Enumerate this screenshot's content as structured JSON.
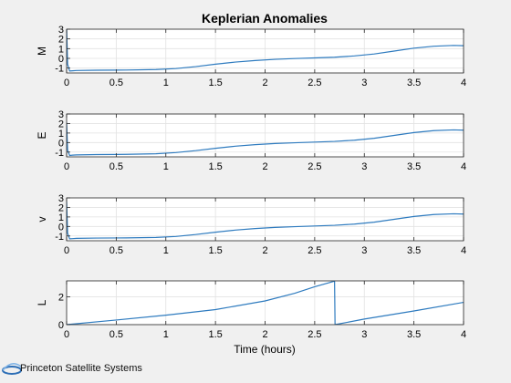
{
  "figure": {
    "title": "Keplerian Anomalies",
    "xlabel": "Time (hours)"
  },
  "logo": {
    "text": "Princeton Satellite Systems"
  },
  "colors": {
    "background": "#f0f0f0",
    "axes_bg": "#ffffff",
    "line": "#2e7bbf",
    "grid": "#e2e2e2",
    "text": "#000000"
  },
  "chart_data": [
    {
      "type": "line",
      "ylabel": "M",
      "xlim": [
        0,
        4
      ],
      "ylim": [
        -1.5,
        3
      ],
      "xticks": [
        0,
        0.5,
        1,
        1.5,
        2,
        2.5,
        3,
        3.5,
        4
      ],
      "xtick_labels": [
        "0",
        "0.5",
        "1",
        "1.5",
        "2",
        "2.5",
        "3",
        "3.5",
        "4"
      ],
      "yticks": [
        -1,
        0,
        1,
        2,
        3
      ],
      "ytick_labels": [
        "-1",
        "0",
        "1",
        "2",
        "3"
      ],
      "grid": true,
      "x": [
        0,
        0.01,
        0.03,
        0.06,
        0.1,
        0.3,
        0.6,
        0.9,
        1.1,
        1.3,
        1.5,
        1.7,
        1.9,
        2.1,
        2.3,
        2.5,
        2.7,
        2.9,
        3.1,
        3.3,
        3.5,
        3.7,
        3.9,
        4.0
      ],
      "y": [
        3.14,
        -0.6,
        -1.3,
        -1.28,
        -1.25,
        -1.22,
        -1.2,
        -1.15,
        -1.05,
        -0.85,
        -0.6,
        -0.38,
        -0.22,
        -0.1,
        -0.02,
        0.05,
        0.12,
        0.25,
        0.45,
        0.75,
        1.05,
        1.25,
        1.33,
        1.3
      ]
    },
    {
      "type": "line",
      "ylabel": "E",
      "xlim": [
        0,
        4
      ],
      "ylim": [
        -1.5,
        3
      ],
      "xticks": [
        0,
        0.5,
        1,
        1.5,
        2,
        2.5,
        3,
        3.5,
        4
      ],
      "xtick_labels": [
        "0",
        "0.5",
        "1",
        "1.5",
        "2",
        "2.5",
        "3",
        "3.5",
        "4"
      ],
      "yticks": [
        -1,
        0,
        1,
        2,
        3
      ],
      "ytick_labels": [
        "-1",
        "0",
        "1",
        "2",
        "3"
      ],
      "grid": true,
      "x": [
        0,
        0.01,
        0.03,
        0.06,
        0.1,
        0.3,
        0.6,
        0.9,
        1.1,
        1.3,
        1.5,
        1.7,
        1.9,
        2.1,
        2.3,
        2.5,
        2.7,
        2.9,
        3.1,
        3.3,
        3.5,
        3.7,
        3.9,
        4.0
      ],
      "y": [
        2.1,
        -0.8,
        -1.35,
        -1.32,
        -1.3,
        -1.26,
        -1.24,
        -1.18,
        -1.05,
        -0.85,
        -0.6,
        -0.38,
        -0.22,
        -0.1,
        -0.02,
        0.05,
        0.12,
        0.25,
        0.45,
        0.75,
        1.05,
        1.25,
        1.33,
        1.3
      ]
    },
    {
      "type": "line",
      "ylabel": "v",
      "xlim": [
        0,
        4
      ],
      "ylim": [
        -1.5,
        3
      ],
      "xticks": [
        0,
        0.5,
        1,
        1.5,
        2,
        2.5,
        3,
        3.5,
        4
      ],
      "xtick_labels": [
        "0",
        "0.5",
        "1",
        "1.5",
        "2",
        "2.5",
        "3",
        "3.5",
        "4"
      ],
      "yticks": [
        -1,
        0,
        1,
        2,
        3
      ],
      "ytick_labels": [
        "-1",
        "0",
        "1",
        "2",
        "3"
      ],
      "grid": true,
      "x": [
        0,
        0.01,
        0.03,
        0.06,
        0.1,
        0.3,
        0.6,
        0.9,
        1.1,
        1.3,
        1.5,
        1.7,
        1.9,
        2.1,
        2.3,
        2.5,
        2.7,
        2.9,
        3.1,
        3.3,
        3.5,
        3.7,
        3.9,
        4.0
      ],
      "y": [
        2.6,
        -0.7,
        -1.3,
        -1.28,
        -1.25,
        -1.22,
        -1.2,
        -1.15,
        -1.05,
        -0.85,
        -0.6,
        -0.38,
        -0.22,
        -0.1,
        -0.02,
        0.05,
        0.12,
        0.25,
        0.45,
        0.75,
        1.05,
        1.25,
        1.33,
        1.3
      ]
    },
    {
      "type": "line",
      "ylabel": "L",
      "xlim": [
        0,
        4
      ],
      "ylim": [
        0,
        3.14
      ],
      "xticks": [
        0,
        0.5,
        1,
        1.5,
        2,
        2.5,
        3,
        3.5,
        4
      ],
      "xtick_labels": [
        "0",
        "0.5",
        "1",
        "1.5",
        "2",
        "2.5",
        "3",
        "3.5",
        "4"
      ],
      "yticks": [
        0,
        2
      ],
      "ytick_labels": [
        "0",
        "2"
      ],
      "grid": true,
      "x": [
        0,
        0.5,
        1.0,
        1.5,
        2.0,
        2.3,
        2.5,
        2.7,
        2.705,
        3.0,
        3.5,
        4.0
      ],
      "y": [
        0,
        0.33,
        0.68,
        1.08,
        1.7,
        2.25,
        2.72,
        3.12,
        0.0,
        0.4,
        0.98,
        1.6
      ]
    }
  ]
}
